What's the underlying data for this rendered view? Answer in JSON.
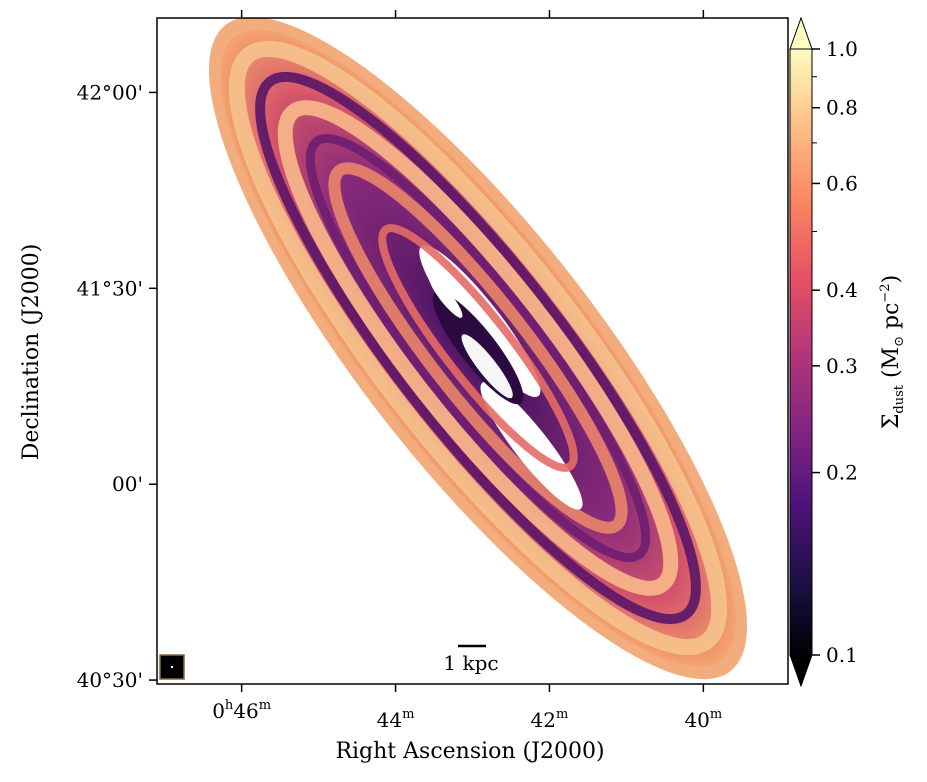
{
  "chart_data": {
    "type": "heatmap",
    "title": "",
    "xlabel": "Right Ascension (J2000)",
    "ylabel": "Declination (J2000)",
    "x_ticks": [
      {
        "value_min": 46,
        "main": "0",
        "sup1": "h",
        "mid": "46",
        "sup2": "m"
      },
      {
        "value_min": 44,
        "main": "",
        "sup1": "",
        "mid": "44",
        "sup2": "m"
      },
      {
        "value_min": 42,
        "main": "",
        "sup1": "",
        "mid": "42",
        "sup2": "m"
      },
      {
        "value_min": 40,
        "main": "",
        "sup1": "",
        "mid": "40",
        "sup2": "m"
      }
    ],
    "xlim_min": [
      47.1,
      38.9
    ],
    "y_ticks": [
      {
        "value_deg": 42.0,
        "label": "42°00'"
      },
      {
        "value_deg": 41.5,
        "label": "41°30'"
      },
      {
        "value_deg": 41.0,
        "label": "00'"
      },
      {
        "value_deg": 40.5,
        "label": "40°30'"
      }
    ],
    "ylim_deg": [
      40.49,
      42.19
    ],
    "colorbar": {
      "label_main": "Σ",
      "label_sub": "dust",
      "label_unit": " (M",
      "label_sun_sub": "⊙",
      "label_tail": " pc",
      "label_exp": "−2",
      "label_close": ")",
      "scale": "log",
      "range": [
        0.1,
        1.0
      ],
      "extend": "both",
      "colormap": "magma",
      "ticks": [
        {
          "value": 1.0,
          "label": "1.0"
        },
        {
          "value": 0.8,
          "label": "0.8"
        },
        {
          "value": 0.6,
          "label": "0.6"
        },
        {
          "value": 0.4,
          "label": "0.4"
        },
        {
          "value": 0.3,
          "label": "0.3"
        },
        {
          "value": 0.2,
          "label": "0.2"
        },
        {
          "value": 0.1,
          "label": "0.1"
        }
      ],
      "minor_ticks": [
        0.9,
        0.7,
        0.5
      ]
    },
    "scale_bar": {
      "label": "1 kpc"
    },
    "beam_marker": "beam"
  },
  "colors": {
    "magma_stops": [
      "#000004",
      "#1c1044",
      "#4f127b",
      "#812581",
      "#b5367a",
      "#e55064",
      "#fb8761",
      "#fec287",
      "#fcfdbf"
    ],
    "axis": "#000000",
    "background": "#ffffff"
  }
}
